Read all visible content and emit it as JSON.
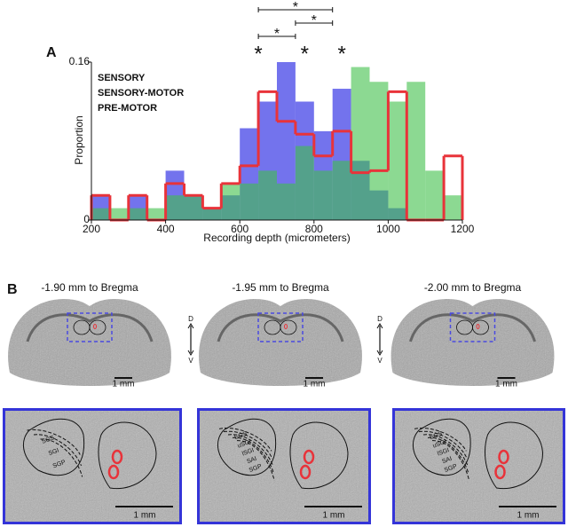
{
  "chart_data": {
    "type": "histogram",
    "panel_label": "A",
    "xlabel": "Recording depth (micrometers)",
    "ylabel": "Proportion",
    "bins": [
      200,
      250,
      300,
      350,
      400,
      450,
      500,
      550,
      600,
      650,
      700,
      750,
      800,
      850,
      900,
      950,
      1000,
      1050,
      1100,
      1150,
      1200
    ],
    "series": [
      {
        "name": "SENSORY",
        "color": "#5b5bea",
        "style": "fill",
        "values": [
          0.025,
          0,
          0.025,
          0,
          0.05,
          0.025,
          0.012,
          0.025,
          0.093,
          0.12,
          0.16,
          0.12,
          0.09,
          0.133,
          0.06,
          0.03,
          0.012,
          0,
          0,
          0
        ]
      },
      {
        "name": "SENSORY-MOTOR",
        "color": "#e8333a",
        "style": "step",
        "values": [
          0.025,
          0,
          0.025,
          0,
          0.037,
          0.025,
          0.012,
          0.037,
          0.055,
          0.13,
          0.1,
          0.087,
          0.065,
          0.09,
          0.048,
          0.05,
          0.13,
          0,
          0,
          0.065
        ]
      },
      {
        "name": "PRE-MOTOR",
        "color": "#3fbf4a",
        "style": "fill",
        "values": [
          0.012,
          0.012,
          0.012,
          0.012,
          0.025,
          0.025,
          0.012,
          0.037,
          0.037,
          0.05,
          0.037,
          0.075,
          0.05,
          0.06,
          0.155,
          0.14,
          0.12,
          0.14,
          0.05,
          0.025
        ]
      }
    ],
    "xlim": [
      200,
      1200
    ],
    "xticks": [
      200,
      400,
      600,
      800,
      1000,
      1200
    ],
    "ylim": [
      0,
      0.16
    ],
    "yticks": [
      0,
      0.16
    ],
    "significance": [
      {
        "x": [
          650,
          850
        ],
        "label": "*"
      },
      {
        "x": [
          750,
          850
        ],
        "label": "*"
      },
      {
        "x": [
          650,
          750
        ],
        "label": "*"
      }
    ],
    "series_markers": [
      "*",
      "*",
      "*"
    ]
  },
  "panel_b": {
    "panel_label": "B",
    "axis_top": "D",
    "axis_bottom": "V",
    "sections": [
      {
        "title": "-1.90 mm to Bregma",
        "scale": "1 mm",
        "zoom_scale": "1 mm",
        "layers": [
          "SGS",
          "SGI",
          "SGP"
        ]
      },
      {
        "title": "-1.95 mm to Bregma",
        "scale": "1 mm",
        "zoom_scale": "1 mm",
        "layers": [
          "SGS",
          "uSGI",
          "lSGI",
          "SAI",
          "SGP"
        ]
      },
      {
        "title": "-2.00 mm to Bregma",
        "scale": "1 mm",
        "zoom_scale": "1 mm",
        "layers": [
          "SGS",
          "uSGI",
          "lSGI",
          "SAI",
          "SGP"
        ]
      }
    ]
  }
}
